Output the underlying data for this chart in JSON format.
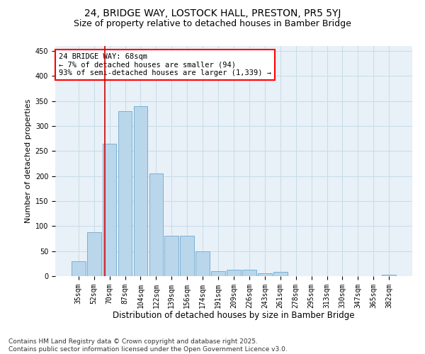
{
  "title1": "24, BRIDGE WAY, LOSTOCK HALL, PRESTON, PR5 5YJ",
  "title2": "Size of property relative to detached houses in Bamber Bridge",
  "xlabel": "Distribution of detached houses by size in Bamber Bridge",
  "ylabel": "Number of detached properties",
  "categories": [
    "35sqm",
    "52sqm",
    "70sqm",
    "87sqm",
    "104sqm",
    "122sqm",
    "139sqm",
    "156sqm",
    "174sqm",
    "191sqm",
    "209sqm",
    "226sqm",
    "243sqm",
    "261sqm",
    "278sqm",
    "295sqm",
    "313sqm",
    "330sqm",
    "347sqm",
    "365sqm",
    "382sqm"
  ],
  "values": [
    30,
    88,
    265,
    330,
    340,
    205,
    80,
    80,
    50,
    10,
    13,
    13,
    6,
    8,
    0,
    0,
    0,
    0,
    0,
    0,
    3
  ],
  "bar_color": "#bad6eb",
  "bar_edge_color": "#7ab0d4",
  "vline_color": "#cc0000",
  "grid_color": "#c8dce8",
  "background_color": "#e8f0f8",
  "ylim": [
    0,
    460
  ],
  "yticks": [
    0,
    50,
    100,
    150,
    200,
    250,
    300,
    350,
    400,
    450
  ],
  "annotation_box_text": "24 BRIDGE WAY: 68sqm\n← 7% of detached houses are smaller (94)\n93% of semi-detached houses are larger (1,339) →",
  "footnote": "Contains HM Land Registry data © Crown copyright and database right 2025.\nContains public sector information licensed under the Open Government Licence v3.0.",
  "title1_fontsize": 10,
  "title2_fontsize": 9,
  "xlabel_fontsize": 8.5,
  "ylabel_fontsize": 8,
  "tick_fontsize": 7,
  "annotation_fontsize": 7.5,
  "footnote_fontsize": 6.5
}
